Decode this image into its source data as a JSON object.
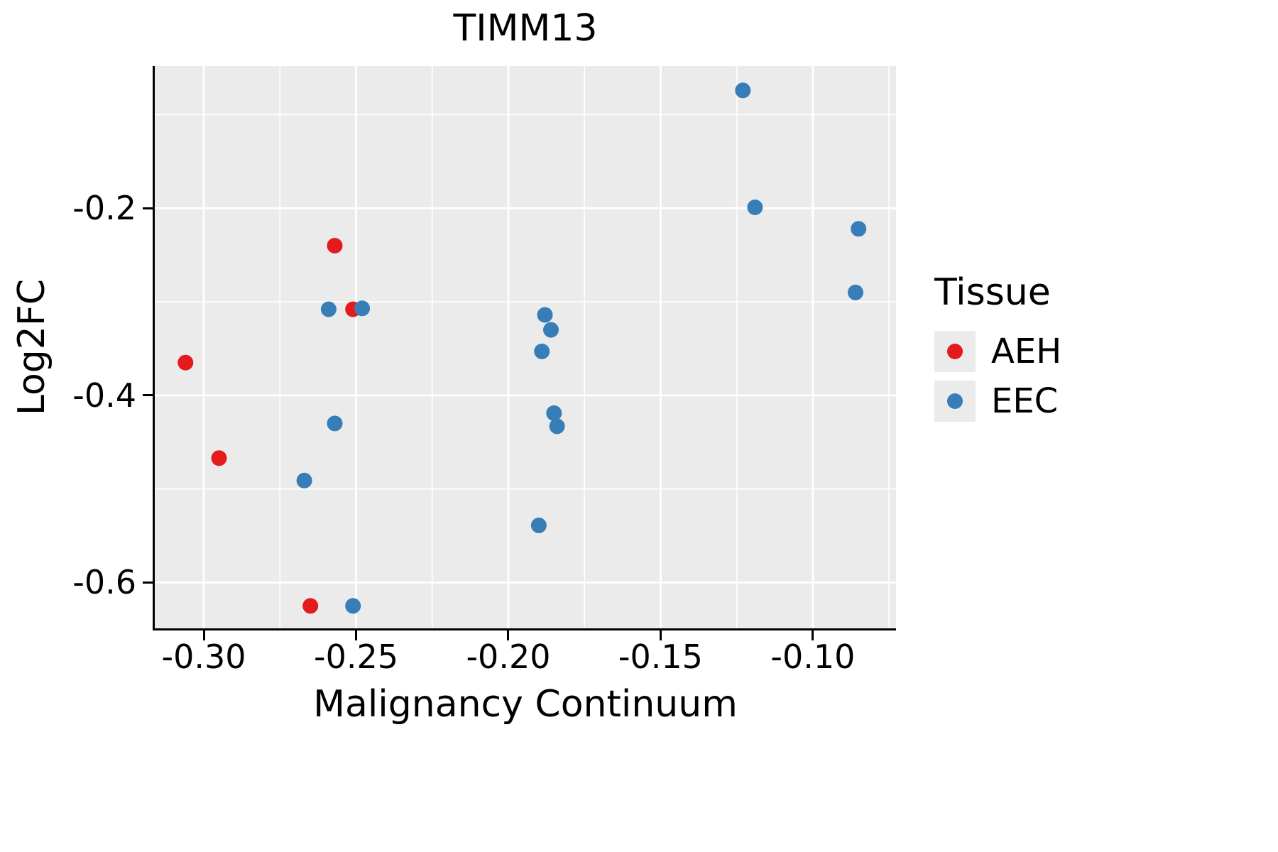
{
  "chart_data": {
    "type": "scatter",
    "title": "TIMM13",
    "xlabel": "Malignancy Continuum",
    "ylabel": "Log2FC",
    "xlim": [
      -0.3161,
      -0.0727
    ],
    "ylim": [
      -0.649,
      -0.048
    ],
    "x_ticks": {
      "values": [
        -0.3,
        -0.25,
        -0.2,
        -0.15,
        -0.1
      ],
      "labels": [
        "-0.30",
        "-0.25",
        "-0.20",
        "-0.15",
        "-0.10"
      ]
    },
    "x_minor_ticks": [
      -0.275,
      -0.225,
      -0.175,
      -0.125,
      -0.075
    ],
    "y_ticks": {
      "values": [
        -0.2,
        -0.4,
        -0.6
      ],
      "labels": [
        "-0.2",
        "-0.4",
        "-0.6"
      ]
    },
    "y_minor_ticks": [
      -0.1,
      -0.3,
      -0.5
    ],
    "grid": true,
    "panel_background": "#EBEBEB",
    "grid_color": "#FFFFFF",
    "point_radius": 11,
    "legend": {
      "title": "Tissue",
      "position": "right"
    },
    "series": [
      {
        "name": "AEH",
        "color": "#E41A1C",
        "points": [
          [
            -0.306,
            -0.365
          ],
          [
            -0.295,
            -0.467
          ],
          [
            -0.257,
            -0.24
          ],
          [
            -0.251,
            -0.308
          ],
          [
            -0.265,
            -0.625
          ]
        ]
      },
      {
        "name": "EEC",
        "color": "#377EB8",
        "points": [
          [
            -0.123,
            -0.074
          ],
          [
            -0.119,
            -0.199
          ],
          [
            -0.085,
            -0.222
          ],
          [
            -0.086,
            -0.29
          ],
          [
            -0.259,
            -0.308
          ],
          [
            -0.248,
            -0.307
          ],
          [
            -0.188,
            -0.314
          ],
          [
            -0.186,
            -0.33
          ],
          [
            -0.189,
            -0.353
          ],
          [
            -0.257,
            -0.43
          ],
          [
            -0.185,
            -0.419
          ],
          [
            -0.184,
            -0.433
          ],
          [
            -0.267,
            -0.491
          ],
          [
            -0.19,
            -0.539
          ],
          [
            -0.251,
            -0.625
          ]
        ]
      }
    ]
  }
}
